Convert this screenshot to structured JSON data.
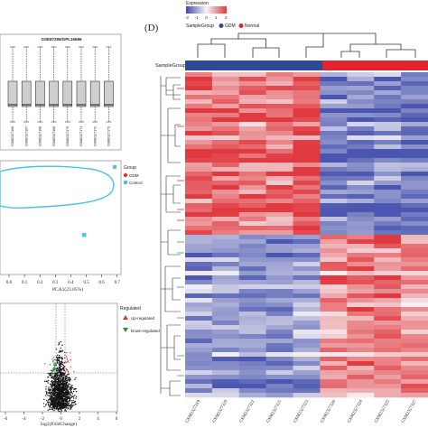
{
  "panels": {
    "boxplot": {
      "title": "GSE87295/GPL16686",
      "sample_labels": [
        "GSM2327166",
        "GSM2327167",
        "GSM2327168",
        "GSM2327169",
        "GSM2327170",
        "GSM2327171",
        "GSM2327172",
        "GSM2327173"
      ],
      "box_color": "#cfcfcf"
    },
    "pca": {
      "legend_title": "Group",
      "legend_items": [
        {
          "name": "GDM",
          "color": "#e8312f"
        },
        {
          "name": "Control",
          "color": "#4cc3e6"
        }
      ],
      "x_ticks": [
        "0.0",
        "0.1",
        "0.2",
        "0.3",
        "0.4",
        "0.5",
        "0.6",
        "0.7"
      ],
      "xlabel": "PCA1(23.05%)"
    },
    "volcano": {
      "legend_title": "Regulated",
      "legend_items": [
        {
          "name": "Up-regulated",
          "color": "#e8312f"
        },
        {
          "name": "Down-regulated",
          "color": "#2f8a3a"
        }
      ],
      "x_ticks": [
        "-6",
        "-4",
        "-2",
        "0",
        "2",
        "4",
        "6"
      ],
      "xlabel": "log2(FoldChange)"
    },
    "heatmap": {
      "panel_label": "(D)",
      "legend": {
        "title": "Expression",
        "ticks": [
          "-2",
          "-1",
          "0",
          "1",
          "2"
        ],
        "group_title": "SampleGroup",
        "group_items": [
          {
            "name": "GDM",
            "color": "#2b4a97"
          },
          {
            "name": "Normal",
            "color": "#e5232f"
          }
        ]
      },
      "annotation_label": "SampleGroup",
      "column_labels": [
        "GSM2327319",
        "GSM2327320",
        "GSM2327322",
        "GSM2327321",
        "GSM2327323",
        "GSM2327326",
        "GSM2327324",
        "GSM2327325",
        "GSM2327327"
      ],
      "colors": {
        "low": "#4a56b0",
        "mid": "#f7f4f6",
        "high": "#e0393f"
      }
    }
  }
}
